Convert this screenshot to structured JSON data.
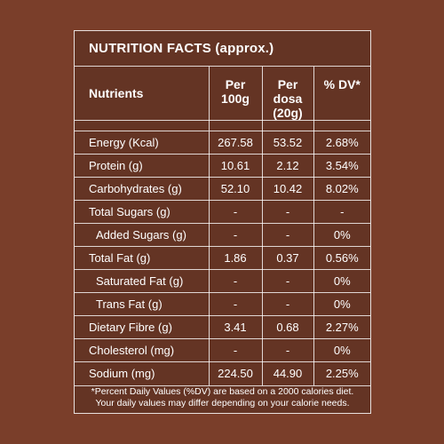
{
  "title": "NUTRITION FACTS (approx.)",
  "headers": {
    "nutrients": "Nutrients",
    "per100g_line1": "Per",
    "per100g_line2": "100g",
    "perdosa_line1": "Per",
    "perdosa_line2": "dosa",
    "perdosa_line3": "(20g)",
    "dv": "% DV*"
  },
  "rows": [
    {
      "name": "Energy (Kcal)",
      "per100g": "267.58",
      "perdosa": "53.52",
      "dv": "2.68%"
    },
    {
      "name": "Protein (g)",
      "per100g": "10.61",
      "perdosa": "2.12",
      "dv": "3.54%"
    },
    {
      "name": "Carbohydrates (g)",
      "per100g": "52.10",
      "perdosa": "10.42",
      "dv": "8.02%"
    },
    {
      "name": "Total Sugars (g)",
      "per100g": "-",
      "perdosa": "-",
      "dv": "-"
    },
    {
      "name": "Added Sugars (g)",
      "per100g": "-",
      "perdosa": "-",
      "dv": "0%"
    },
    {
      "name": "Total Fat (g)",
      "per100g": "1.86",
      "perdosa": "0.37",
      "dv": "0.56%"
    },
    {
      "name": "Saturated Fat (g)",
      "per100g": "-",
      "perdosa": "-",
      "dv": "0%"
    },
    {
      "name": "Trans Fat (g)",
      "per100g": "-",
      "perdosa": "-",
      "dv": "0%"
    },
    {
      "name": "Dietary Fibre (g)",
      "per100g": "3.41",
      "perdosa": "0.68",
      "dv": "2.27%"
    },
    {
      "name": "Cholesterol (mg)",
      "per100g": "-",
      "perdosa": "-",
      "dv": "0%"
    },
    {
      "name": "Sodium (mg)",
      "per100g": "224.50",
      "perdosa": "44.90",
      "dv": "2.25%"
    }
  ],
  "footnote_line1": "*Percent Daily Values (%DV) are based on a 2000 calories diet.",
  "footnote_line2": "Your daily values may differ depending on your calorie needs."
}
